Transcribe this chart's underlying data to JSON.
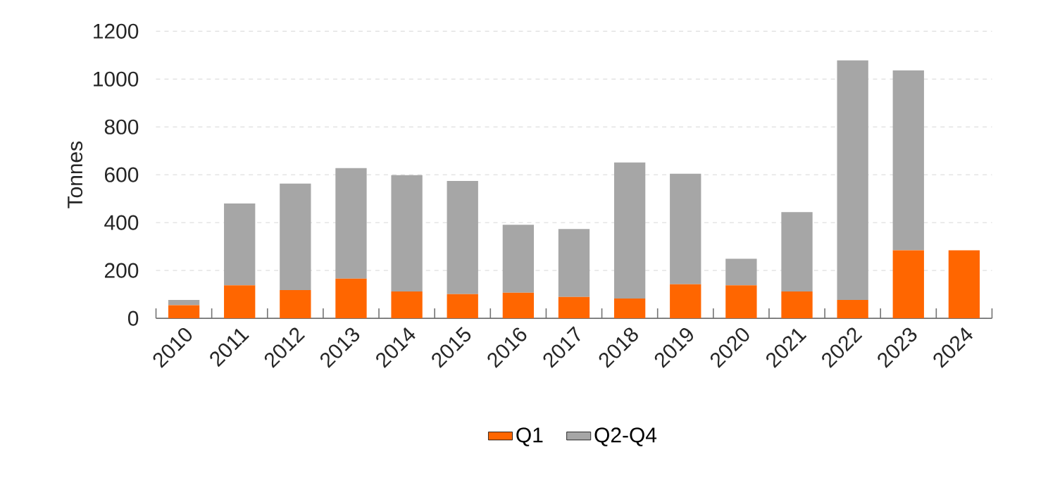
{
  "chart_data": {
    "type": "bar",
    "stacked": true,
    "ylabel": "Tonnes",
    "categories": [
      "2010",
      "2011",
      "2012",
      "2013",
      "2014",
      "2015",
      "2016",
      "2017",
      "2018",
      "2019",
      "2020",
      "2021",
      "2022",
      "2023",
      "2024"
    ],
    "series": [
      {
        "name": "Q1",
        "color": "#ff6600",
        "values": [
          55,
          138,
          118,
          166,
          112,
          101,
          107,
          89,
          83,
          142,
          138,
          112,
          77,
          284,
          284
        ]
      },
      {
        "name": "Q2-Q4",
        "color": "#a6a6a6",
        "values": [
          22,
          342,
          445,
          462,
          486,
          473,
          284,
          284,
          568,
          462,
          111,
          332,
          1001,
          752,
          0
        ]
      }
    ],
    "ylim": [
      0,
      1200
    ],
    "yticks": [
      0,
      200,
      400,
      600,
      800,
      1000,
      1200
    ],
    "grid": "y",
    "legend": "bottom"
  }
}
